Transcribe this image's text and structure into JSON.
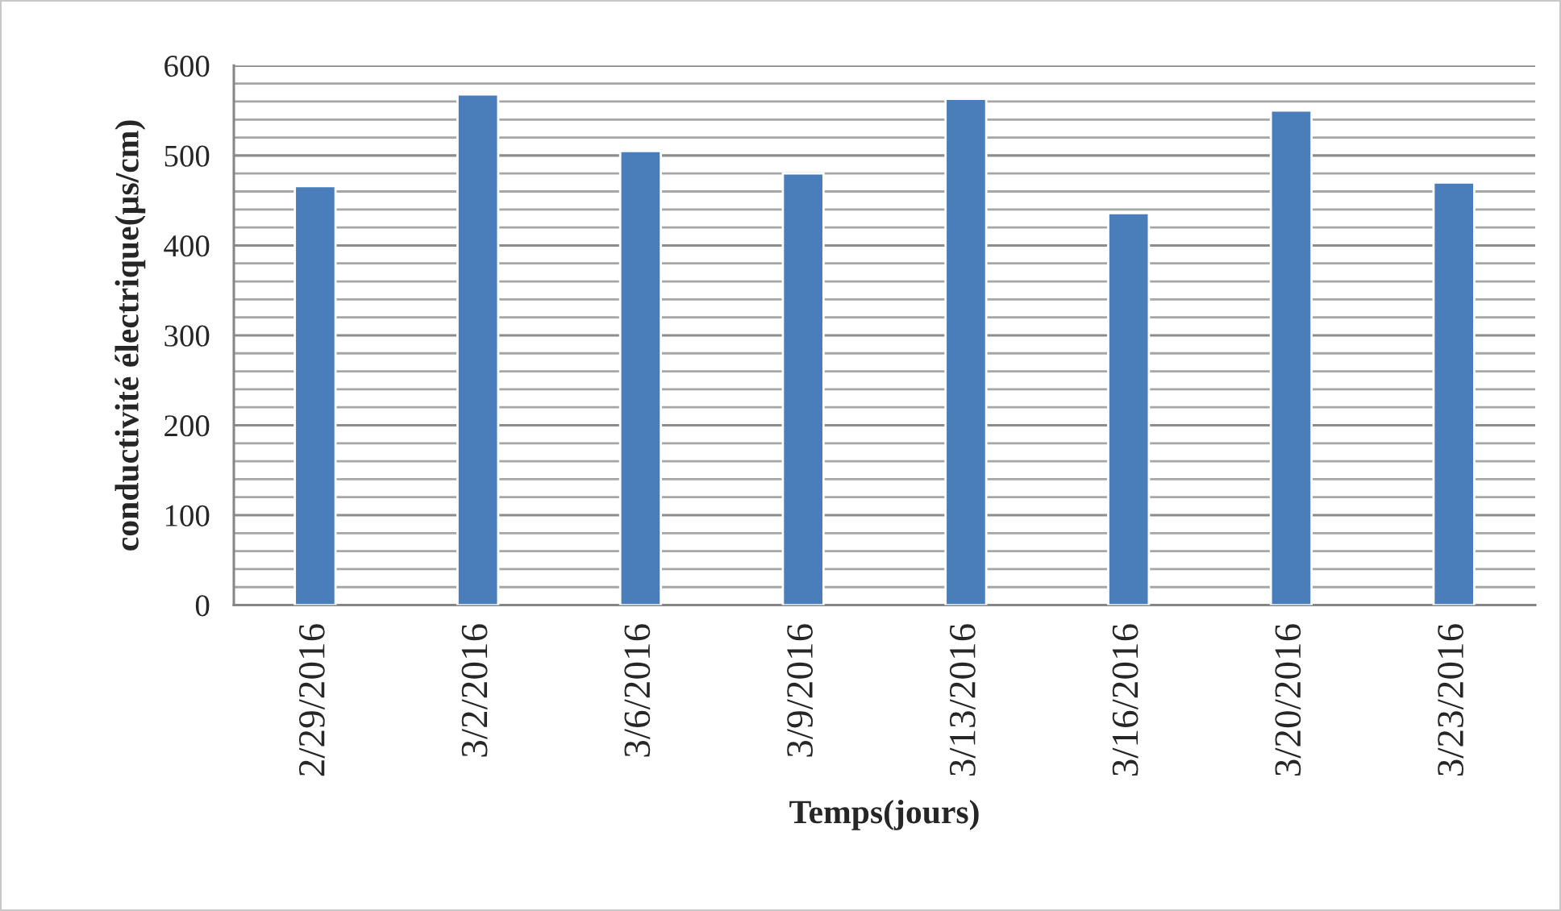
{
  "chart_data": {
    "type": "bar",
    "xlabel": "Temps(jours)",
    "ylabel": "conductivité électrique(µs/cm)",
    "categories": [
      "2/29/2016",
      "3/2/2016",
      "3/6/2016",
      "3/9/2016",
      "3/13/2016",
      "3/16/2016",
      "3/20/2016",
      "3/23/2016"
    ],
    "values": [
      466,
      568,
      505,
      480,
      563,
      436,
      550,
      470
    ],
    "color": "#4a7ebb",
    "ylim": [
      0,
      600
    ],
    "yticks": [
      0,
      {
        "value": 20,
        "label": null
      },
      {
        "value": 40,
        "label": null
      },
      {
        "value": 60,
        "label": null
      },
      {
        "value": 80,
        "label": null
      },
      100,
      {
        "value": 120,
        "label": null
      },
      {
        "value": 140,
        "label": null
      },
      {
        "value": 160,
        "label": null
      },
      {
        "value": 180,
        "label": null
      },
      200,
      {
        "value": 220,
        "label": null
      },
      {
        "value": 240,
        "label": null
      },
      {
        "value": 260,
        "label": null
      },
      {
        "value": 280,
        "label": null
      },
      300,
      {
        "value": 320,
        "label": null
      },
      {
        "value": 340,
        "label": null
      },
      {
        "value": 360,
        "label": null
      },
      {
        "value": 380,
        "label": null
      },
      400,
      {
        "value": 420,
        "label": null
      },
      {
        "value": 440,
        "label": null
      },
      {
        "value": 460,
        "label": null
      },
      {
        "value": 480,
        "label": null
      },
      500,
      {
        "value": 520,
        "label": null
      },
      {
        "value": 540,
        "label": null
      },
      {
        "value": 560,
        "label": null
      },
      {
        "value": 580,
        "label": null
      },
      600
    ],
    "grid": "y"
  }
}
